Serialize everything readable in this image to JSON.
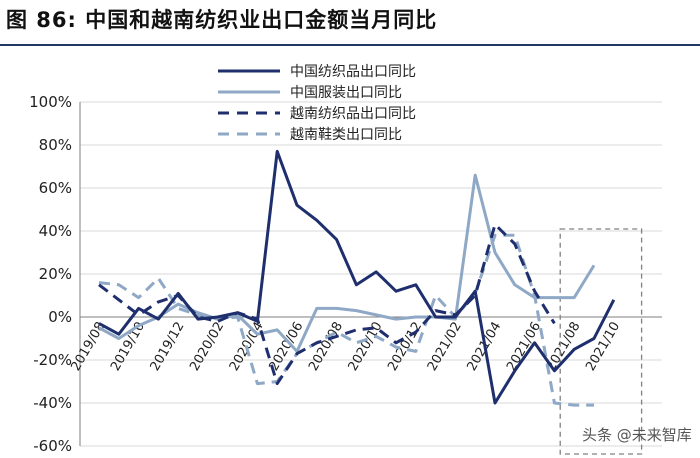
{
  "figure": {
    "title": "图 86:  中国和越南纺织业出口金额当月同比",
    "watermark": "头条 @未来智库"
  },
  "colors": {
    "dark": "#1f2f6e",
    "light": "#8ea8c6",
    "grid": "#d9d9d9",
    "axis": "#7f7f7f",
    "highlight_box": "#808080"
  },
  "chart_data": {
    "type": "line",
    "ylim": [
      -60,
      100
    ],
    "yticks": [
      100,
      80,
      60,
      40,
      20,
      0,
      -20,
      -40,
      -60
    ],
    "ytick_labels": [
      "100%",
      "80%",
      "60%",
      "40%",
      "20%",
      "0%",
      "-20%",
      "-40%",
      "-60%"
    ],
    "x": [
      "2019/08",
      "2019/09",
      "2019/10",
      "2019/11",
      "2019/12",
      "2020/01",
      "2020/02",
      "2020/03",
      "2020/04",
      "2020/05",
      "2020/06",
      "2020/07",
      "2020/08",
      "2020/09",
      "2020/10",
      "2020/11",
      "2020/12",
      "2021/01",
      "2021/02",
      "2021/03",
      "2021/04",
      "2021/05",
      "2021/06",
      "2021/07",
      "2021/08",
      "2021/09",
      "2021/10",
      "2021/11"
    ],
    "xtick_labels": [
      "2019/08",
      "2019/10",
      "2019/12",
      "2020/02",
      "2020/04",
      "2020/06",
      "2020/08",
      "2020/10",
      "2020/12",
      "2021/02",
      "2021/04",
      "2021/06",
      "2021/08",
      "2021/10"
    ],
    "legend_position": "top-center",
    "highlight_range": [
      "2021/08",
      "2021/11"
    ],
    "series": [
      {
        "name": "中国纺织品出口同比",
        "color": "#1f2f6e",
        "dash": "solid",
        "values": [
          -3,
          -8,
          4,
          -1,
          11,
          -1,
          0,
          2,
          -2,
          77,
          52,
          45,
          36,
          15,
          21,
          12,
          15,
          0,
          0,
          12,
          -40,
          -25,
          -12,
          -25,
          -15,
          -10,
          8,
          null
        ]
      },
      {
        "name": "中国服装出口同比",
        "color": "#8ea8c6",
        "dash": "solid",
        "values": [
          -5,
          -10,
          -4,
          0,
          6,
          2,
          -1,
          1,
          -8,
          -6,
          -16,
          4,
          4,
          3,
          1,
          -1,
          0,
          0,
          -1,
          66,
          30,
          15,
          9,
          9,
          9,
          24,
          null,
          null
        ]
      },
      {
        "name": "越南纺织品出口同比",
        "color": "#1f2f6e",
        "dash": "dash",
        "values": [
          15,
          8,
          1,
          7,
          10,
          0,
          -2,
          2,
          -1,
          -31,
          -17,
          -12,
          -9,
          -6,
          -5,
          -12,
          -7,
          3,
          1,
          10,
          43,
          34,
          12,
          -3,
          null,
          null,
          null,
          null
        ]
      },
      {
        "name": "越南鞋类出口同比",
        "color": "#8ea8c6",
        "dash": "dash",
        "values": [
          16,
          15,
          9,
          18,
          4,
          1,
          -1,
          0,
          -31,
          -30,
          -17,
          -12,
          -7,
          -12,
          -9,
          -14,
          -16,
          10,
          0,
          11,
          38,
          38,
          10,
          -40,
          -41,
          -41,
          null,
          null
        ]
      }
    ]
  }
}
